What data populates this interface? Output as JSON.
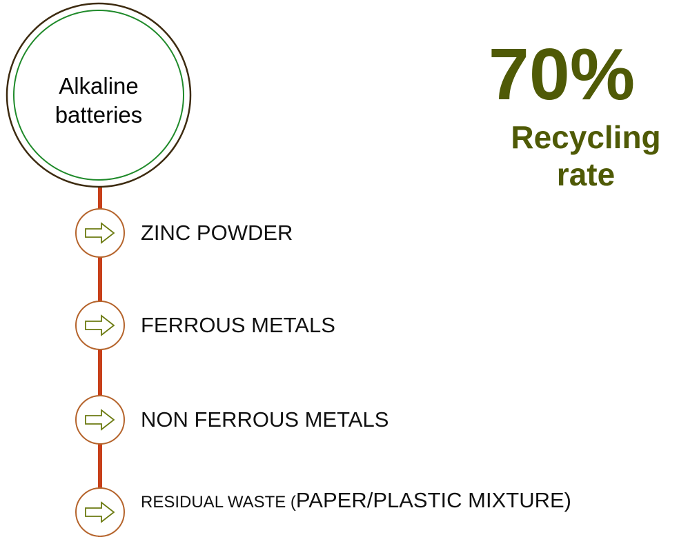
{
  "main_node": {
    "line1": "Alkaline",
    "line2": "batteries"
  },
  "items": [
    {
      "label": "ZINC POWDER",
      "icon": "right-arrow-icon"
    },
    {
      "label": "FERROUS METALS",
      "icon": "right-arrow-icon"
    },
    {
      "label": "NON FERROUS METALS",
      "icon": "right-arrow-icon"
    },
    {
      "label_small": "RESIDUAL WASTE (",
      "label_large": "PAPER/PLASTIC MIXTURE)",
      "icon": "right-arrow-icon"
    }
  ],
  "stat": {
    "value": "70%",
    "caption_line1": "Recycling",
    "caption_line2": "rate"
  },
  "colors": {
    "connector": "#c8401a",
    "node_ring": "#b5642c",
    "main_outer_ring": "#3d2b10",
    "main_inner_ring": "#1f8a2a",
    "arrow": "#6b7a10",
    "stat_text": "#4f5a06"
  }
}
